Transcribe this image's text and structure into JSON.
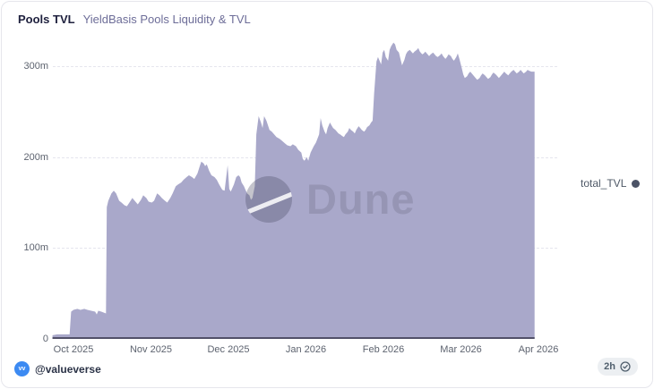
{
  "header": {
    "title": "Pools TVL",
    "subtitle": "YieldBasis Pools Liquidity & TVL"
  },
  "legend": {
    "label": "total_TVL",
    "marker_color": "#4b5366"
  },
  "watermark": {
    "text": "Dune"
  },
  "footer": {
    "avatar_initials": "vv",
    "author_handle": "@valueverse",
    "updated_badge": "2h"
  },
  "chart_data": {
    "type": "area",
    "title": "YieldBasis Pools Liquidity & TVL",
    "series_name": "total_TVL",
    "unit": "millions USD",
    "fill_color": "#a9a8ca",
    "baseline_color": "#515069",
    "grid": "horizontal-dashed",
    "legend_position": "right",
    "x_ticks": [
      "Oct 2025",
      "Nov 2025",
      "Dec 2025",
      "Jan 2026",
      "Feb 2026",
      "Mar 2026",
      "Apr 2026"
    ],
    "y_ticks": [
      "0",
      "100m",
      "200m",
      "300m"
    ],
    "y_tick_values": [
      0,
      100,
      200,
      300
    ],
    "ylim": [
      0,
      331
    ],
    "x_unit": "months_since_2025-10-01",
    "points": [
      [
        -0.27,
        4
      ],
      [
        -0.21,
        5
      ],
      [
        -0.14,
        5
      ],
      [
        -0.07,
        5
      ],
      [
        -0.05,
        5
      ],
      [
        -0.03,
        30
      ],
      [
        0,
        32
      ],
      [
        0.05,
        33
      ],
      [
        0.09,
        32
      ],
      [
        0.14,
        33
      ],
      [
        0.18,
        32
      ],
      [
        0.23,
        31
      ],
      [
        0.28,
        30
      ],
      [
        0.3,
        27
      ],
      [
        0.32,
        31
      ],
      [
        0.36,
        30
      ],
      [
        0.39,
        29
      ],
      [
        0.42,
        28
      ],
      [
        0.43,
        145
      ],
      [
        0.45,
        152
      ],
      [
        0.49,
        160
      ],
      [
        0.52,
        163
      ],
      [
        0.55,
        160
      ],
      [
        0.59,
        152
      ],
      [
        0.62,
        150
      ],
      [
        0.66,
        147
      ],
      [
        0.69,
        146
      ],
      [
        0.73,
        151
      ],
      [
        0.76,
        155
      ],
      [
        0.8,
        151
      ],
      [
        0.83,
        148
      ],
      [
        0.87,
        153
      ],
      [
        0.9,
        158
      ],
      [
        0.94,
        155
      ],
      [
        0.97,
        151
      ],
      [
        1.01,
        150
      ],
      [
        1.04,
        152
      ],
      [
        1.08,
        160
      ],
      [
        1.11,
        158
      ],
      [
        1.14,
        155
      ],
      [
        1.18,
        152
      ],
      [
        1.21,
        150
      ],
      [
        1.25,
        155
      ],
      [
        1.28,
        160
      ],
      [
        1.32,
        168
      ],
      [
        1.35,
        170
      ],
      [
        1.39,
        172
      ],
      [
        1.42,
        175
      ],
      [
        1.46,
        178
      ],
      [
        1.49,
        180
      ],
      [
        1.53,
        178
      ],
      [
        1.56,
        176
      ],
      [
        1.6,
        182
      ],
      [
        1.63,
        190
      ],
      [
        1.65,
        195
      ],
      [
        1.68,
        193
      ],
      [
        1.7,
        190
      ],
      [
        1.72,
        192
      ],
      [
        1.75,
        185
      ],
      [
        1.78,
        180
      ],
      [
        1.82,
        178
      ],
      [
        1.85,
        175
      ],
      [
        1.88,
        170
      ],
      [
        1.92,
        164
      ],
      [
        1.95,
        163
      ],
      [
        1.99,
        191
      ],
      [
        2.01,
        165
      ],
      [
        2.03,
        162
      ],
      [
        2.07,
        170
      ],
      [
        2.1,
        178
      ],
      [
        2.13,
        180
      ],
      [
        2.15,
        178
      ],
      [
        2.17,
        172
      ],
      [
        2.2,
        168
      ],
      [
        2.22,
        164
      ],
      [
        2.24,
        160
      ],
      [
        2.27,
        158
      ],
      [
        2.29,
        153
      ],
      [
        2.31,
        155
      ],
      [
        2.34,
        168
      ],
      [
        2.36,
        225
      ],
      [
        2.39,
        245
      ],
      [
        2.42,
        238
      ],
      [
        2.44,
        232
      ],
      [
        2.46,
        245
      ],
      [
        2.49,
        240
      ],
      [
        2.51,
        235
      ],
      [
        2.53,
        230
      ],
      [
        2.56,
        228
      ],
      [
        2.59,
        225
      ],
      [
        2.62,
        222
      ],
      [
        2.66,
        220
      ],
      [
        2.69,
        218
      ],
      [
        2.73,
        215
      ],
      [
        2.76,
        213
      ],
      [
        2.8,
        212
      ],
      [
        2.83,
        214
      ],
      [
        2.87,
        212
      ],
      [
        2.9,
        208
      ],
      [
        2.94,
        205
      ],
      [
        2.96,
        198
      ],
      [
        2.98,
        196
      ],
      [
        3.01,
        200
      ],
      [
        3.03,
        196
      ],
      [
        3.06,
        205
      ],
      [
        3.1,
        212
      ],
      [
        3.13,
        216
      ],
      [
        3.17,
        225
      ],
      [
        3.19,
        243
      ],
      [
        3.21,
        235
      ],
      [
        3.24,
        228
      ],
      [
        3.26,
        225
      ],
      [
        3.28,
        232
      ],
      [
        3.31,
        238
      ],
      [
        3.33,
        235
      ],
      [
        3.35,
        232
      ],
      [
        3.38,
        230
      ],
      [
        3.4,
        228
      ],
      [
        3.42,
        226
      ],
      [
        3.44,
        225
      ],
      [
        3.47,
        223
      ],
      [
        3.49,
        222
      ],
      [
        3.51,
        225
      ],
      [
        3.54,
        228
      ],
      [
        3.56,
        232
      ],
      [
        3.58,
        230
      ],
      [
        3.61,
        228
      ],
      [
        3.63,
        226
      ],
      [
        3.65,
        230
      ],
      [
        3.68,
        234
      ],
      [
        3.7,
        232
      ],
      [
        3.72,
        230
      ],
      [
        3.75,
        228
      ],
      [
        3.77,
        230
      ],
      [
        3.79,
        233
      ],
      [
        3.82,
        235
      ],
      [
        3.84,
        238
      ],
      [
        3.86,
        240
      ],
      [
        3.88,
        270
      ],
      [
        3.91,
        305
      ],
      [
        3.93,
        310
      ],
      [
        3.97,
        302
      ],
      [
        3.99,
        315
      ],
      [
        4.01,
        318
      ],
      [
        4.03,
        310
      ],
      [
        4.06,
        306
      ],
      [
        4.08,
        318
      ],
      [
        4.1,
        322
      ],
      [
        4.13,
        326
      ],
      [
        4.15,
        324
      ],
      [
        4.17,
        318
      ],
      [
        4.2,
        315
      ],
      [
        4.22,
        308
      ],
      [
        4.24,
        301
      ],
      [
        4.27,
        307
      ],
      [
        4.29,
        313
      ],
      [
        4.31,
        316
      ],
      [
        4.34,
        318
      ],
      [
        4.36,
        316
      ],
      [
        4.38,
        314
      ],
      [
        4.4,
        316
      ],
      [
        4.43,
        318
      ],
      [
        4.45,
        320
      ],
      [
        4.47,
        316
      ],
      [
        4.5,
        313
      ],
      [
        4.52,
        314
      ],
      [
        4.54,
        316
      ],
      [
        4.57,
        313
      ],
      [
        4.59,
        311
      ],
      [
        4.61,
        313
      ],
      [
        4.64,
        315
      ],
      [
        4.66,
        313
      ],
      [
        4.68,
        311
      ],
      [
        4.7,
        310
      ],
      [
        4.73,
        312
      ],
      [
        4.75,
        314
      ],
      [
        4.77,
        311
      ],
      [
        4.8,
        308
      ],
      [
        4.82,
        310
      ],
      [
        4.84,
        313
      ],
      [
        4.87,
        311
      ],
      [
        4.89,
        308
      ],
      [
        4.91,
        306
      ],
      [
        4.94,
        310
      ],
      [
        4.96,
        314
      ],
      [
        4.98,
        308
      ],
      [
        5.01,
        298
      ],
      [
        5.03,
        291
      ],
      [
        5.05,
        287
      ],
      [
        5.08,
        289
      ],
      [
        5.1,
        292
      ],
      [
        5.12,
        294
      ],
      [
        5.14,
        292
      ],
      [
        5.17,
        289
      ],
      [
        5.19,
        287
      ],
      [
        5.21,
        285
      ],
      [
        5.24,
        287
      ],
      [
        5.26,
        290
      ],
      [
        5.28,
        292
      ],
      [
        5.31,
        290
      ],
      [
        5.33,
        288
      ],
      [
        5.35,
        286
      ],
      [
        5.38,
        288
      ],
      [
        5.4,
        291
      ],
      [
        5.42,
        293
      ],
      [
        5.45,
        291
      ],
      [
        5.47,
        289
      ],
      [
        5.49,
        287
      ],
      [
        5.51,
        289
      ],
      [
        5.54,
        292
      ],
      [
        5.56,
        294
      ],
      [
        5.58,
        292
      ],
      [
        5.61,
        290
      ],
      [
        5.63,
        292
      ],
      [
        5.65,
        294
      ],
      [
        5.68,
        296
      ],
      [
        5.7,
        294
      ],
      [
        5.72,
        292
      ],
      [
        5.75,
        294
      ],
      [
        5.77,
        296
      ],
      [
        5.79,
        294
      ],
      [
        5.81,
        292
      ],
      [
        5.84,
        294
      ],
      [
        5.86,
        296
      ],
      [
        5.88,
        295
      ],
      [
        5.91,
        294
      ],
      [
        5.93,
        294
      ],
      [
        5.95,
        294
      ]
    ]
  }
}
